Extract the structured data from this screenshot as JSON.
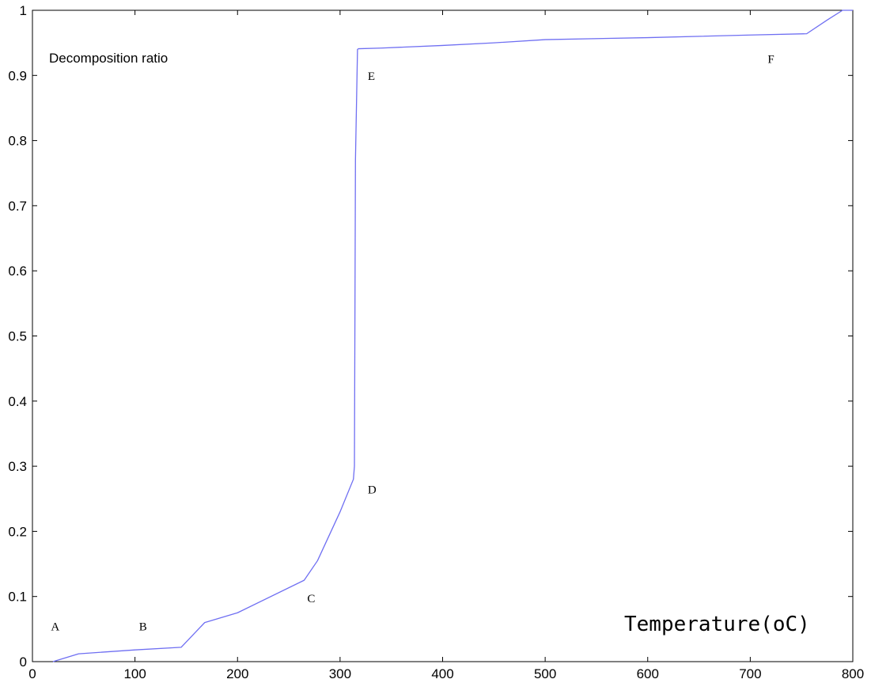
{
  "chart_data": {
    "type": "line",
    "xlabel": "Temperature(oC)",
    "ylabel": "Decomposition ratio",
    "xlim": [
      0,
      800
    ],
    "ylim": [
      0,
      1
    ],
    "xticks": [
      0,
      100,
      200,
      300,
      400,
      500,
      600,
      700,
      800
    ],
    "yticks": [
      0,
      0.1,
      0.2,
      0.3,
      0.4,
      0.5,
      0.6,
      0.7,
      0.8,
      0.9,
      1
    ],
    "ytick_labels": [
      "0",
      "0.1",
      "0.2",
      "0.3",
      "0.4",
      "0.5",
      "0.6",
      "0.7",
      "0.8",
      "0.9",
      "1"
    ],
    "grid": false,
    "series": [
      {
        "color": "#6f6ff2",
        "x": [
          20,
          45,
          100,
          145,
          168,
          200,
          265,
          278,
          300,
          313,
          314,
          315,
          317,
          318,
          340,
          400,
          450,
          500,
          600,
          700,
          755,
          775,
          790,
          800
        ],
        "y": [
          0,
          0.012,
          0.018,
          0.022,
          0.06,
          0.075,
          0.125,
          0.155,
          0.23,
          0.28,
          0.3,
          0.77,
          0.94,
          0.941,
          0.942,
          0.946,
          0.95,
          0.955,
          0.958,
          0.962,
          0.964,
          0.985,
          1.0,
          1.0
        ]
      }
    ],
    "annotations": [
      {
        "text": "A",
        "x": 18,
        "y": 0.048
      },
      {
        "text": "B",
        "x": 104,
        "y": 0.048
      },
      {
        "text": "C",
        "x": 268,
        "y": 0.091
      },
      {
        "text": "D",
        "x": 327,
        "y": 0.258
      },
      {
        "text": "E",
        "x": 327,
        "y": 0.893
      },
      {
        "text": "F",
        "x": 717,
        "y": 0.919
      }
    ]
  }
}
